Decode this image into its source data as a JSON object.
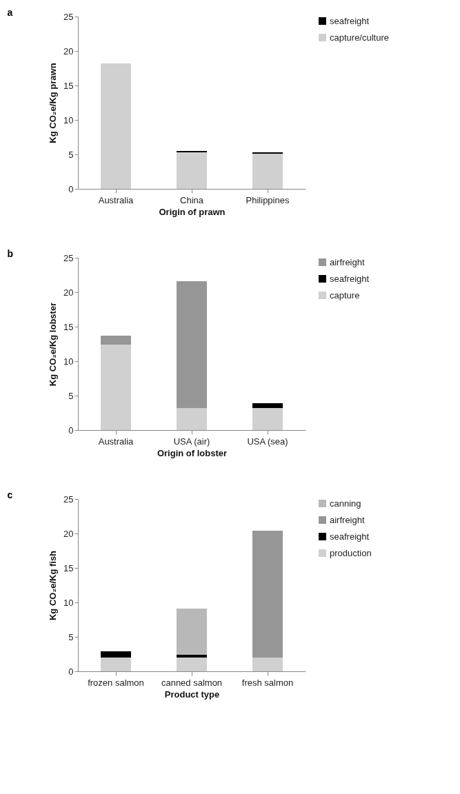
{
  "chart_data": [
    {
      "type": "bar",
      "title": "a",
      "stacked": true,
      "xlabel": "Origin of prawn",
      "ylabel": "Kg CO₂e/Kg prawn",
      "categories": [
        "Australia",
        "China",
        "Philippines"
      ],
      "ylim": [
        0,
        25
      ],
      "yticks": [
        0,
        5,
        10,
        15,
        20,
        25
      ],
      "legend": "right",
      "series": [
        {
          "name": "capture/culture",
          "color": "#d0d0d0",
          "values": [
            18.2,
            5.3,
            5.1
          ]
        },
        {
          "name": "seafreight",
          "color": "#000000",
          "values": [
            0,
            0.2,
            0.2
          ]
        }
      ]
    },
    {
      "type": "bar",
      "title": "b",
      "stacked": true,
      "xlabel": "Origin of lobster",
      "ylabel": "Kg CO₂e/Kg lobster",
      "categories": [
        "Australia",
        "USA (air)",
        "USA (sea)"
      ],
      "ylim": [
        0,
        25
      ],
      "yticks": [
        0,
        5,
        10,
        15,
        20,
        25
      ],
      "legend": "right",
      "series": [
        {
          "name": "capture",
          "color": "#d0d0d0",
          "values": [
            12.4,
            3.2,
            3.2
          ]
        },
        {
          "name": "seafreight",
          "color": "#000000",
          "values": [
            0,
            0,
            0.7
          ]
        },
        {
          "name": "airfreight",
          "color": "#969696",
          "values": [
            1.3,
            18.4,
            0
          ]
        }
      ]
    },
    {
      "type": "bar",
      "title": "c",
      "stacked": true,
      "xlabel": "Product type",
      "ylabel": "Kg CO₂e/Kg fish",
      "categories": [
        "frozen salmon",
        "canned salmon",
        "fresh salmon"
      ],
      "ylim": [
        0,
        25
      ],
      "yticks": [
        0,
        5,
        10,
        15,
        20,
        25
      ],
      "legend": "right",
      "series": [
        {
          "name": "production",
          "color": "#d0d0d0",
          "values": [
            2.0,
            2.0,
            2.0
          ]
        },
        {
          "name": "seafreight",
          "color": "#000000",
          "values": [
            0.9,
            0.4,
            0
          ]
        },
        {
          "name": "airfreight",
          "color": "#969696",
          "values": [
            0,
            0,
            18.4
          ]
        },
        {
          "name": "canning",
          "color": "#b8b8b8",
          "values": [
            0,
            6.7,
            0
          ]
        }
      ]
    }
  ]
}
